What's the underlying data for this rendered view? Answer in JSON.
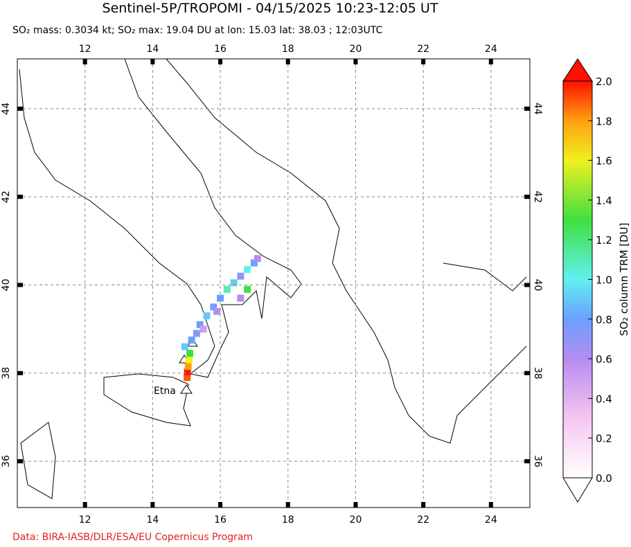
{
  "map": {
    "title": "Sentinel-5P/TROPOMI - 04/15/2025 10:23-12:05 UT",
    "subtitle": "SO₂ mass: 0.3034 kt; SO₂ max: 19.04 DU at lon: 15.03 lat: 38.03 ; 12:03UTC",
    "credit": "Data: BIRA-IASB/DLR/ESA/EU Copernicus Program",
    "volcano_label": "Etna",
    "xlim": [
      10,
      25.15
    ],
    "ylim": [
      34.95,
      45.13
    ],
    "xticks": [
      12,
      14,
      16,
      18,
      20,
      22,
      24
    ],
    "yticks": [
      36,
      38,
      40,
      42,
      44
    ],
    "grid": true,
    "colorbar": {
      "label": "SO₂ column TRM [DU]",
      "lim": [
        0,
        2
      ],
      "ticks": [
        {
          "value": 0,
          "label": "0.0"
        },
        {
          "value": 0.2,
          "label": "0.2"
        },
        {
          "value": 0.4,
          "label": "0.4"
        },
        {
          "value": 0.6,
          "label": "0.6"
        },
        {
          "value": 0.8,
          "label": "0.8"
        },
        {
          "value": 1,
          "label": "1.0"
        },
        {
          "value": 1.2,
          "label": "1.2"
        },
        {
          "value": 1.4,
          "label": "1.4"
        },
        {
          "value": 1.6,
          "label": "1.6"
        },
        {
          "value": 1.8,
          "label": "1.8"
        },
        {
          "value": 2,
          "label": "2.0"
        }
      ],
      "colormap": [
        [
          0,
          "#ffffff"
        ],
        [
          0.3,
          "#f6c6f0"
        ],
        [
          0.6,
          "#b58cf0"
        ],
        [
          0.8,
          "#6aa0ff"
        ],
        [
          1,
          "#60f0f0"
        ],
        [
          1.3,
          "#40e040"
        ],
        [
          1.6,
          "#f0f020"
        ],
        [
          1.8,
          "#ffa010"
        ],
        [
          2,
          "#ff1000"
        ]
      ]
    },
    "plume": {
      "lon": [
        15.02,
        15.03,
        15.05,
        15.08,
        15.1,
        14.95,
        15.15,
        15.3,
        15.4,
        15.6,
        15.8,
        16.0,
        16.2,
        16.4,
        16.6,
        16.8,
        17.0,
        17.1,
        16.8,
        16.6,
        15.5,
        15.9
      ],
      "lat": [
        37.9,
        38.03,
        38.15,
        38.3,
        38.45,
        38.6,
        38.75,
        38.9,
        39.1,
        39.3,
        39.5,
        39.7,
        39.9,
        40.05,
        40.2,
        40.35,
        40.5,
        40.6,
        39.9,
        39.7,
        39.0,
        39.4
      ],
      "values": [
        1.9,
        2.0,
        1.8,
        1.6,
        1.3,
        0.9,
        0.8,
        0.7,
        0.8,
        0.9,
        0.75,
        0.8,
        1.1,
        0.9,
        0.7,
        1.0,
        0.8,
        0.6,
        1.3,
        0.6,
        0.5,
        0.6
      ]
    }
  }
}
